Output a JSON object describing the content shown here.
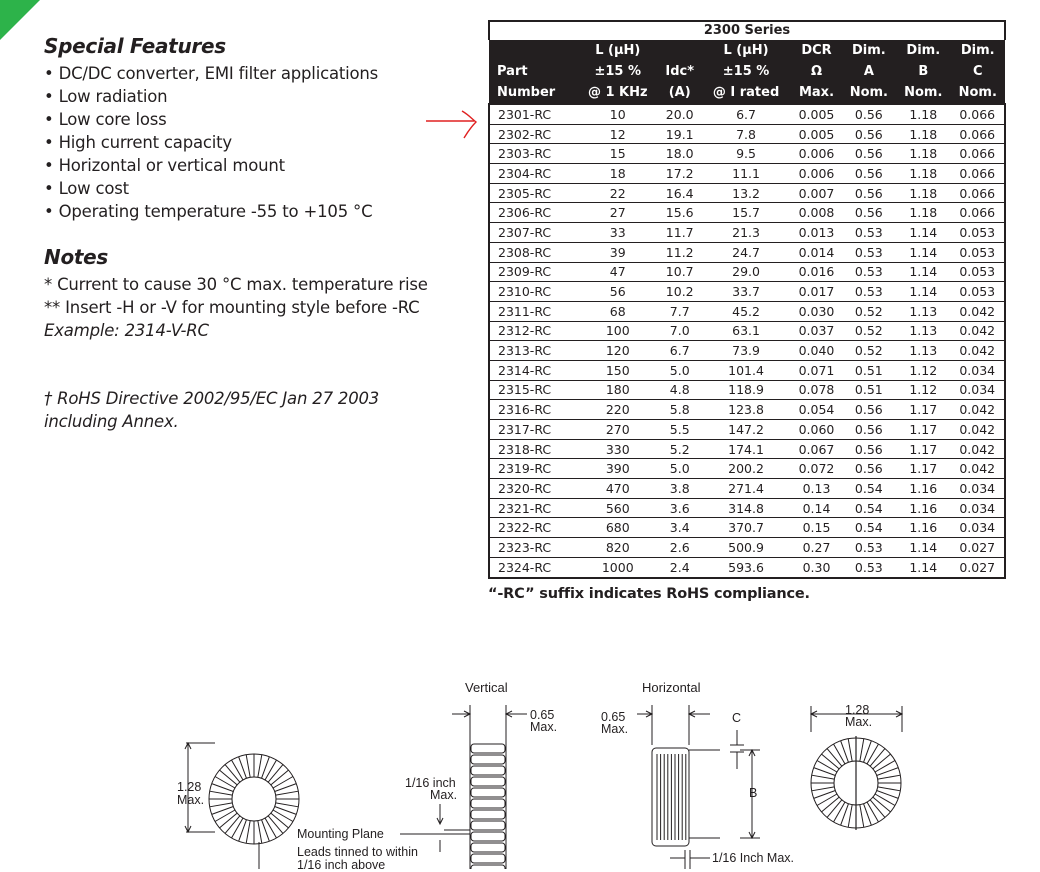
{
  "special_features": {
    "title": "Special Features",
    "items": [
      "• DC/DC converter, EMI filter applications",
      "• Low radiation",
      "• Low core loss",
      "• High current capacity",
      "• Horizontal or vertical mount",
      "• Low cost",
      "• Operating temperature -55 to +105 °C"
    ]
  },
  "notes": {
    "title": "Notes",
    "line1": "* Current to cause 30 °C max. temperature rise",
    "line2": "** Insert -H or -V for mounting style before -RC",
    "line3": "Example: 2314-V-RC",
    "rohs1": "† RoHS Directive 2002/95/EC Jan 27 2003",
    "rohs2": "including Annex."
  },
  "table": {
    "caption": "2300 Series",
    "headers": [
      [
        "",
        "L (µH)",
        "",
        "L (µH)",
        "DCR",
        "Dim.",
        "Dim.",
        "Dim."
      ],
      [
        "Part",
        "±15 %",
        "Idc*",
        "±15 %",
        "Ω",
        "A",
        "B",
        "C"
      ],
      [
        "Number",
        "@ 1 KHz",
        "(A)",
        "@ I rated",
        "Max.",
        "Nom.",
        "Nom.",
        "Nom."
      ]
    ],
    "rows": [
      [
        "2301-RC",
        "10",
        "20.0",
        "6.7",
        "0.005",
        "0.56",
        "1.18",
        "0.066"
      ],
      [
        "2302-RC",
        "12",
        "19.1",
        "7.8",
        "0.005",
        "0.56",
        "1.18",
        "0.066"
      ],
      [
        "2303-RC",
        "15",
        "18.0",
        "9.5",
        "0.006",
        "0.56",
        "1.18",
        "0.066"
      ],
      [
        "2304-RC",
        "18",
        "17.2",
        "11.1",
        "0.006",
        "0.56",
        "1.18",
        "0.066"
      ],
      [
        "2305-RC",
        "22",
        "16.4",
        "13.2",
        "0.007",
        "0.56",
        "1.18",
        "0.066"
      ],
      [
        "2306-RC",
        "27",
        "15.6",
        "15.7",
        "0.008",
        "0.56",
        "1.18",
        "0.066"
      ],
      [
        "2307-RC",
        "33",
        "11.7",
        "21.3",
        "0.013",
        "0.53",
        "1.14",
        "0.053"
      ],
      [
        "2308-RC",
        "39",
        "11.2",
        "24.7",
        "0.014",
        "0.53",
        "1.14",
        "0.053"
      ],
      [
        "2309-RC",
        "47",
        "10.7",
        "29.0",
        "0.016",
        "0.53",
        "1.14",
        "0.053"
      ],
      [
        "2310-RC",
        "56",
        "10.2",
        "33.7",
        "0.017",
        "0.53",
        "1.14",
        "0.053"
      ],
      [
        "2311-RC",
        "68",
        "7.7",
        "45.2",
        "0.030",
        "0.52",
        "1.13",
        "0.042"
      ],
      [
        "2312-RC",
        "100",
        "7.0",
        "63.1",
        "0.037",
        "0.52",
        "1.13",
        "0.042"
      ],
      [
        "2313-RC",
        "120",
        "6.7",
        "73.9",
        "0.040",
        "0.52",
        "1.13",
        "0.042"
      ],
      [
        "2314-RC",
        "150",
        "5.0",
        "101.4",
        "0.071",
        "0.51",
        "1.12",
        "0.034"
      ],
      [
        "2315-RC",
        "180",
        "4.8",
        "118.9",
        "0.078",
        "0.51",
        "1.12",
        "0.034"
      ],
      [
        "2316-RC",
        "220",
        "5.8",
        "123.8",
        "0.054",
        "0.56",
        "1.17",
        "0.042"
      ],
      [
        "2317-RC",
        "270",
        "5.5",
        "147.2",
        "0.060",
        "0.56",
        "1.17",
        "0.042"
      ],
      [
        "2318-RC",
        "330",
        "5.2",
        "174.1",
        "0.067",
        "0.56",
        "1.17",
        "0.042"
      ],
      [
        "2319-RC",
        "390",
        "5.0",
        "200.2",
        "0.072",
        "0.56",
        "1.17",
        "0.042"
      ],
      [
        "2320-RC",
        "470",
        "3.8",
        "271.4",
        "0.13",
        "0.54",
        "1.16",
        "0.034"
      ],
      [
        "2321-RC",
        "560",
        "3.6",
        "314.8",
        "0.14",
        "0.54",
        "1.16",
        "0.034"
      ],
      [
        "2322-RC",
        "680",
        "3.4",
        "370.7",
        "0.15",
        "0.54",
        "1.16",
        "0.034"
      ],
      [
        "2323-RC",
        "820",
        "2.6",
        "500.9",
        "0.27",
        "0.53",
        "1.14",
        "0.027"
      ],
      [
        "2324-RC",
        "1000",
        "2.4",
        "593.6",
        "0.30",
        "0.53",
        "1.14",
        "0.027"
      ]
    ],
    "suffix_note": "“-RC” suffix indicates RoHS compliance."
  },
  "drawings": {
    "vertical_title": "Vertical",
    "horizontal_title": "Horizontal",
    "dim_128_a": "1.28",
    "dim_max_a": "Max.",
    "dim_065_v": "0.65",
    "dim_max_v": "Max.",
    "lead_116": "1/16 inch",
    "lead_max": "Max.",
    "mounting_plane": "Mounting Plane",
    "leads_tinned": "Leads tinned to within",
    "leads_above": "1/16 inch above",
    "dim_065_h": "0.65",
    "dim_max_h": "Max.",
    "dim_c": "C",
    "dim_b": "B",
    "lead_116_h": "1/16 Inch Max.",
    "dim_128_b": "1.28",
    "dim_max_b": "Max."
  },
  "colors": {
    "accent_green": "#2db34a",
    "annotation_red": "#e02020",
    "ink": "#231f20"
  }
}
